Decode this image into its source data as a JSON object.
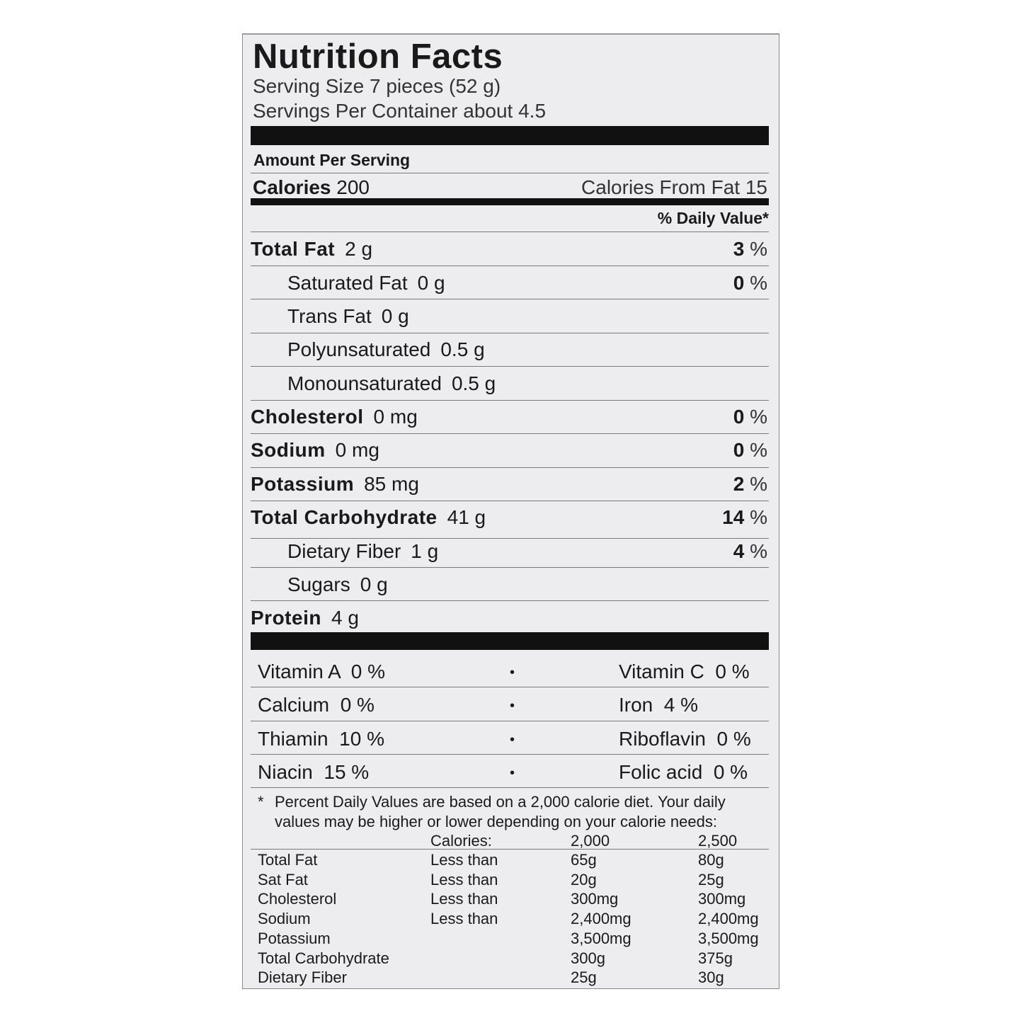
{
  "title": "Nutrition Facts",
  "serving_size": "Serving Size 7 pieces (52 g)",
  "servings_per_container": "Servings Per Container about 4.5",
  "amount_per_serving": "Amount Per Serving",
  "calories": {
    "label": "Calories",
    "value": "200",
    "from_fat": "Calories From Fat 15"
  },
  "daily_value_header": "% Daily Value*",
  "nutrients": [
    {
      "name": "Total Fat",
      "amount": "2 g",
      "dv": "3",
      "sub": false
    },
    {
      "name": "Saturated Fat",
      "amount": "0 g",
      "dv": "0",
      "sub": true
    },
    {
      "name": "Trans Fat",
      "amount": "0 g",
      "dv": "",
      "sub": true
    },
    {
      "name": "Polyunsaturated",
      "amount": "0.5 g",
      "dv": "",
      "sub": true
    },
    {
      "name": "Monounsaturated",
      "amount": "0.5 g",
      "dv": "",
      "sub": true
    },
    {
      "name": "Cholesterol",
      "amount": "0 mg",
      "dv": "0",
      "sub": false
    },
    {
      "name": "Sodium",
      "amount": "0 mg",
      "dv": "0",
      "sub": false
    },
    {
      "name": "Potassium",
      "amount": "85 mg",
      "dv": "2",
      "sub": false
    },
    {
      "name": "Total Carbohydrate",
      "amount": "41 g",
      "dv": "14",
      "sub": false
    },
    {
      "name": "Dietary Fiber",
      "amount": "1 g",
      "dv": "4",
      "sub": true
    },
    {
      "name": "Sugars",
      "amount": "0 g",
      "dv": "",
      "sub": true
    },
    {
      "name": "Protein",
      "amount": "4 g",
      "dv": "",
      "sub": false
    }
  ],
  "percent_sign": "%",
  "vitamins": [
    {
      "left": "Vitamin A  0 %",
      "right": "Vitamin C  0 %"
    },
    {
      "left": "Calcium  0 %",
      "right": "Iron  4 %"
    },
    {
      "left": "Thiamin  10 %",
      "right": "Riboflavin  0 %"
    },
    {
      "left": "Niacin  15 %",
      "right": "Folic acid  0 %"
    }
  ],
  "bullet": "•",
  "footnote": {
    "star": "*",
    "line1": "Percent Daily Values are based on a 2,000 calorie diet. Your daily",
    "line2": "values may be higher or lower depending on your calorie needs:"
  },
  "reference_table": {
    "header": [
      "",
      "Calories:",
      "2,000",
      "2,500"
    ],
    "rows": [
      [
        "Total Fat",
        "Less than",
        "65g",
        "80g"
      ],
      [
        "Sat Fat",
        "Less than",
        "20g",
        "25g"
      ],
      [
        "Cholesterol",
        "Less than",
        "300mg",
        "300mg"
      ],
      [
        "Sodium",
        "Less than",
        "2,400mg",
        "2,400mg"
      ],
      [
        "Potassium",
        "",
        "3,500mg",
        "3,500mg"
      ],
      [
        "Total Carbohydrate",
        "",
        "300g",
        "375g"
      ],
      [
        "Dietary Fiber",
        "",
        "25g",
        "30g"
      ]
    ]
  }
}
